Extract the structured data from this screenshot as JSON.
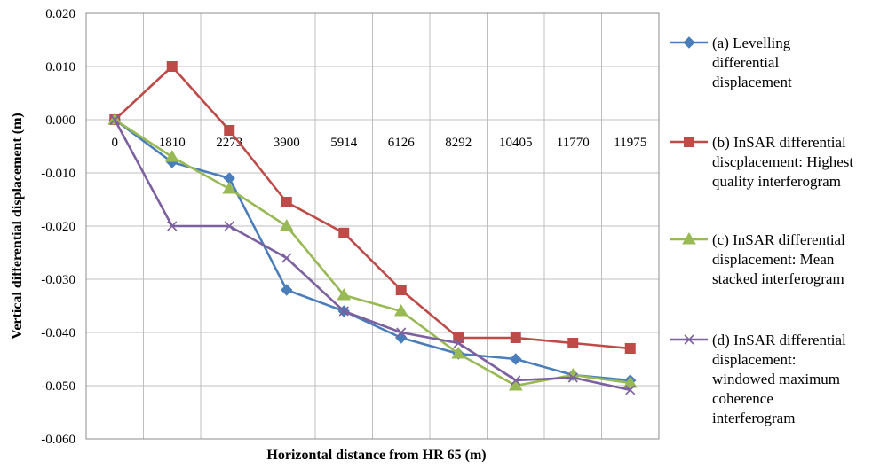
{
  "chart_data": {
    "type": "line",
    "title": "",
    "xlabel": "Horizontal distance from HR 65 (m)",
    "ylabel": "Vertical differential displacement (m)",
    "categories": [
      "0",
      "1810",
      "2273",
      "3900",
      "5914",
      "6126",
      "8292",
      "10405",
      "11770",
      "11975"
    ],
    "y_ticks": [
      "0.020",
      "0.010",
      "0.000",
      "-0.010",
      "-0.020",
      "-0.030",
      "-0.040",
      "-0.050",
      "-0.060"
    ],
    "ylim": [
      -0.06,
      0.02
    ],
    "grid": true,
    "legend_position": "right",
    "series": [
      {
        "name_lines": [
          "(a) Levelling",
          "differential",
          "displacement"
        ],
        "color": "#4a7ebb",
        "marker": "diamond",
        "values": [
          0.0,
          -0.008,
          -0.011,
          -0.032,
          -0.036,
          -0.041,
          -0.044,
          -0.045,
          -0.048,
          -0.049
        ]
      },
      {
        "name_lines": [
          "(b) InSAR differential",
          "discplacement: Highest",
          "quality interferogram"
        ],
        "color": "#be4b48",
        "marker": "square",
        "values": [
          0.0,
          0.01,
          -0.002,
          -0.0155,
          -0.0213,
          -0.032,
          -0.041,
          -0.041,
          -0.042,
          -0.043
        ]
      },
      {
        "name_lines": [
          "(c) InSAR differential",
          "displacement: Mean",
          "stacked interferogram"
        ],
        "color": "#98b954",
        "marker": "triangle",
        "values": [
          0.0,
          -0.007,
          -0.013,
          -0.02,
          -0.033,
          -0.036,
          -0.044,
          -0.05,
          -0.048,
          -0.0495
        ]
      },
      {
        "name_lines": [
          "(d) InSAR differential",
          "displacement:",
          "windowed maximum",
          "coherence",
          "interferogram"
        ],
        "color": "#7d60a0",
        "marker": "x",
        "values": [
          0.0,
          -0.02,
          -0.02,
          -0.026,
          -0.036,
          -0.04,
          -0.042,
          -0.049,
          -0.0485,
          -0.0508
        ]
      }
    ]
  }
}
